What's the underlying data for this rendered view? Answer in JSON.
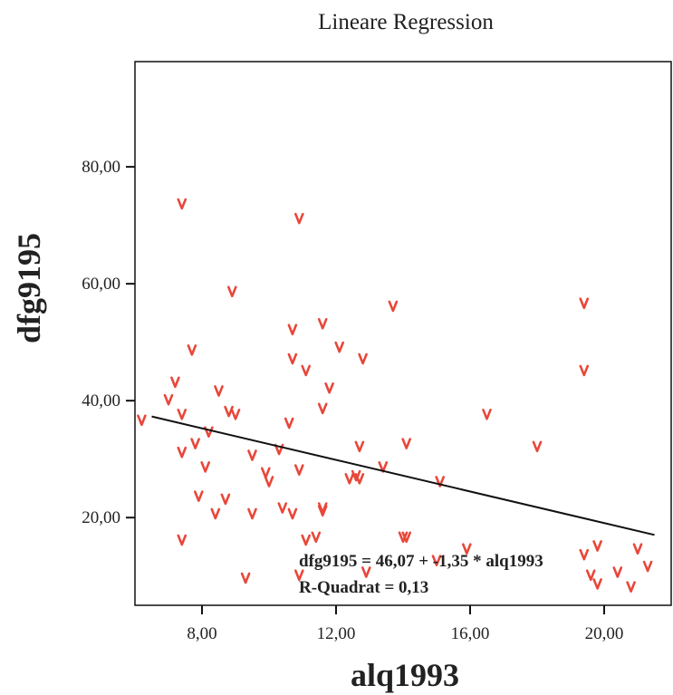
{
  "chart_data": {
    "type": "scatter",
    "title": "Lineare Regression",
    "xlabel": "alq1993",
    "ylabel": "dfg9195",
    "xlim": [
      6.0,
      22.0
    ],
    "ylim": [
      5.0,
      98.0
    ],
    "x_ticks": [
      {
        "value": 8,
        "label": "8,00"
      },
      {
        "value": 12,
        "label": "12,00"
      },
      {
        "value": 16,
        "label": "16,00"
      },
      {
        "value": 20,
        "label": "20,00"
      }
    ],
    "y_ticks": [
      {
        "value": 20,
        "label": "20,00"
      },
      {
        "value": 40,
        "label": "40,00"
      },
      {
        "value": 60,
        "label": "60,00"
      },
      {
        "value": 80,
        "label": "80,00"
      }
    ],
    "grid": false,
    "marker_color": "#e8473a",
    "line_color": "#111111",
    "regression": {
      "intercept": 46.07,
      "slope": -1.35,
      "x_range": [
        6.5,
        21.5
      ]
    },
    "annotations": [
      "dfg9195 = 46,07 + -1,35 * alq1993",
      "R-Quadrat = 0,13"
    ],
    "points": [
      {
        "x": 6.2,
        "y": 36.5
      },
      {
        "x": 7.0,
        "y": 40.0
      },
      {
        "x": 7.2,
        "y": 43.0
      },
      {
        "x": 7.4,
        "y": 73.5
      },
      {
        "x": 7.4,
        "y": 37.5
      },
      {
        "x": 7.4,
        "y": 31.0
      },
      {
        "x": 7.4,
        "y": 16.0
      },
      {
        "x": 7.7,
        "y": 48.5
      },
      {
        "x": 7.8,
        "y": 32.5
      },
      {
        "x": 7.9,
        "y": 23.5
      },
      {
        "x": 8.1,
        "y": 28.5
      },
      {
        "x": 8.2,
        "y": 34.5
      },
      {
        "x": 8.4,
        "y": 20.5
      },
      {
        "x": 8.5,
        "y": 41.5
      },
      {
        "x": 8.7,
        "y": 23.0
      },
      {
        "x": 8.8,
        "y": 38.0
      },
      {
        "x": 8.9,
        "y": 58.5
      },
      {
        "x": 9.0,
        "y": 37.5
      },
      {
        "x": 9.3,
        "y": 9.5
      },
      {
        "x": 9.5,
        "y": 30.5
      },
      {
        "x": 9.5,
        "y": 20.5
      },
      {
        "x": 9.9,
        "y": 27.5
      },
      {
        "x": 10.0,
        "y": 26.0
      },
      {
        "x": 10.3,
        "y": 31.5
      },
      {
        "x": 10.4,
        "y": 21.5
      },
      {
        "x": 10.6,
        "y": 36.0
      },
      {
        "x": 10.7,
        "y": 52.0
      },
      {
        "x": 10.7,
        "y": 47.0
      },
      {
        "x": 10.7,
        "y": 20.5
      },
      {
        "x": 10.9,
        "y": 71.0
      },
      {
        "x": 10.9,
        "y": 28.0
      },
      {
        "x": 10.9,
        "y": 10.0
      },
      {
        "x": 11.1,
        "y": 45.0
      },
      {
        "x": 11.1,
        "y": 16.0
      },
      {
        "x": 11.4,
        "y": 16.5
      },
      {
        "x": 11.6,
        "y": 53.0
      },
      {
        "x": 11.6,
        "y": 38.5
      },
      {
        "x": 11.6,
        "y": 21.5
      },
      {
        "x": 11.6,
        "y": 21.0
      },
      {
        "x": 11.8,
        "y": 42.0
      },
      {
        "x": 12.1,
        "y": 49.0
      },
      {
        "x": 12.4,
        "y": 26.5
      },
      {
        "x": 12.6,
        "y": 27.0
      },
      {
        "x": 12.7,
        "y": 26.5
      },
      {
        "x": 12.7,
        "y": 32.0
      },
      {
        "x": 12.8,
        "y": 47.0
      },
      {
        "x": 12.9,
        "y": 10.5
      },
      {
        "x": 13.4,
        "y": 28.5
      },
      {
        "x": 13.7,
        "y": 56.0
      },
      {
        "x": 14.0,
        "y": 16.5
      },
      {
        "x": 14.1,
        "y": 16.5
      },
      {
        "x": 14.1,
        "y": 32.5
      },
      {
        "x": 15.0,
        "y": 12.5
      },
      {
        "x": 15.1,
        "y": 26.0
      },
      {
        "x": 15.9,
        "y": 14.5
      },
      {
        "x": 16.5,
        "y": 37.5
      },
      {
        "x": 18.0,
        "y": 32.0
      },
      {
        "x": 19.4,
        "y": 56.5
      },
      {
        "x": 19.4,
        "y": 45.0
      },
      {
        "x": 19.4,
        "y": 13.5
      },
      {
        "x": 19.6,
        "y": 10.0
      },
      {
        "x": 19.8,
        "y": 15.0
      },
      {
        "x": 19.8,
        "y": 8.5
      },
      {
        "x": 20.4,
        "y": 10.5
      },
      {
        "x": 20.8,
        "y": 8.0
      },
      {
        "x": 21.0,
        "y": 14.5
      },
      {
        "x": 21.3,
        "y": 11.5
      }
    ]
  }
}
